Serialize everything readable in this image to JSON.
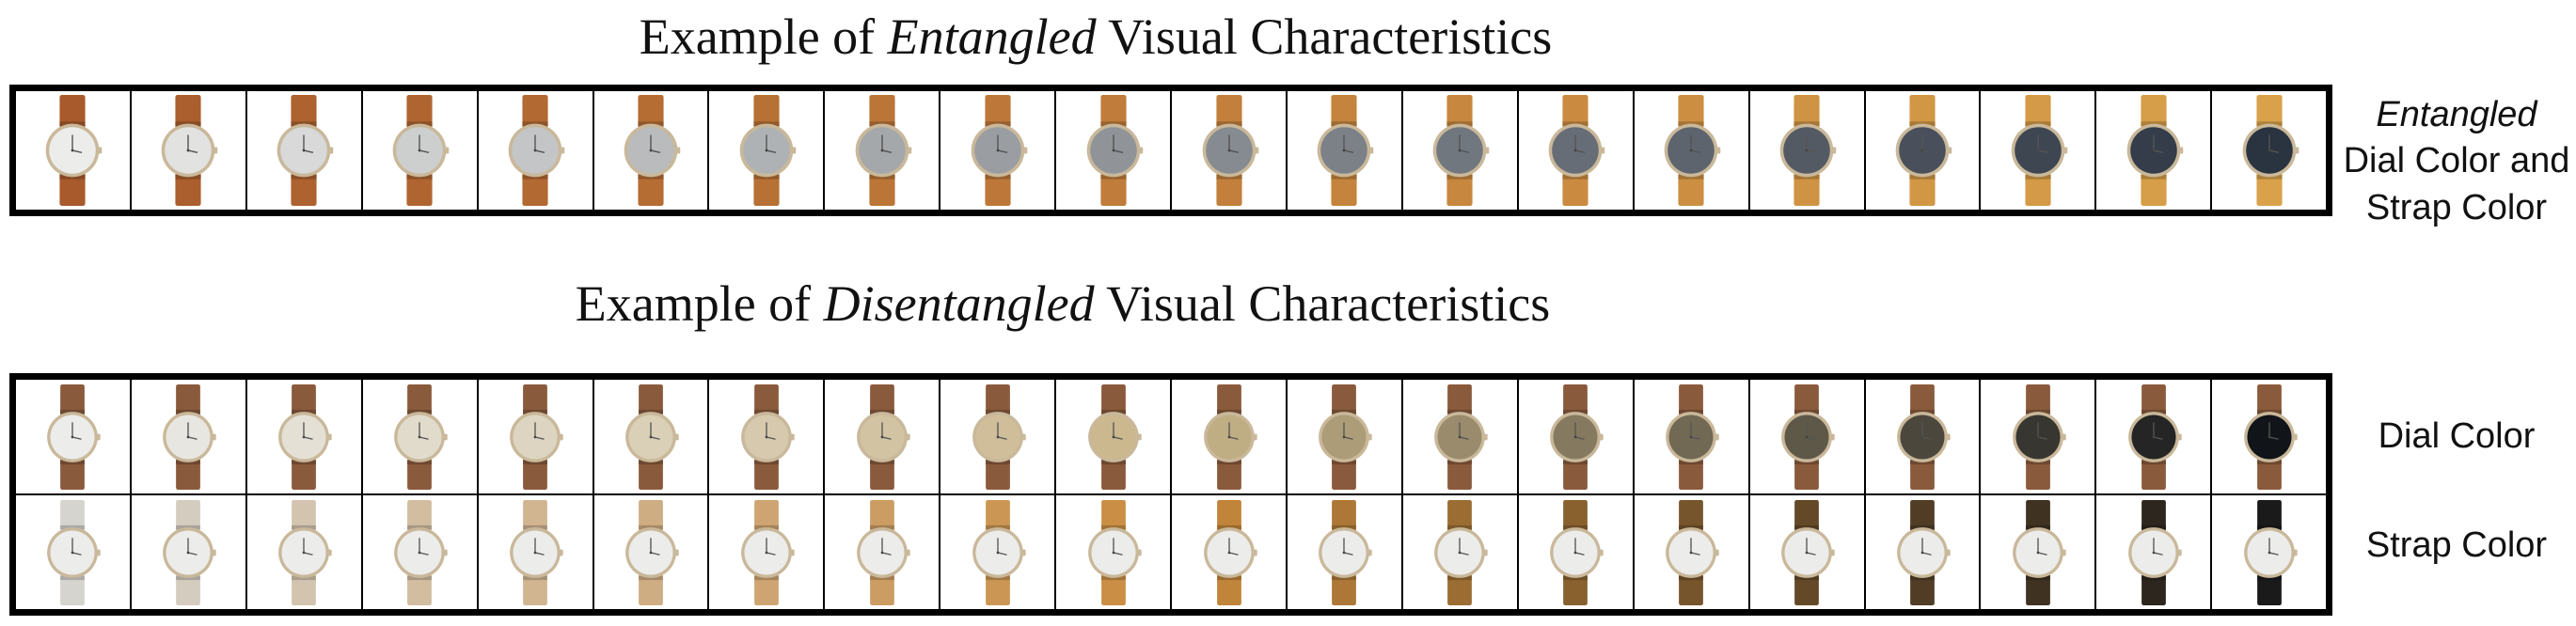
{
  "top": {
    "title_prefix": "Example of ",
    "title_emph": "Entangled",
    "title_suffix": " Visual Characteristics",
    "side_emph": "Entangled",
    "side_line2": "Dial Color and",
    "side_line3": "Strap Color"
  },
  "bottom": {
    "title_prefix": "Example of ",
    "title_emph": "Disentangled",
    "title_suffix": " Visual Characteristics",
    "row1_label": "Dial Color",
    "row2_label": "Strap Color"
  },
  "images": {
    "entangled_row": {
      "count": 20,
      "strap_start": "#a85a2c",
      "strap_end": "#d9a24a",
      "dial_start": "#ececea",
      "dial_end": "#2a3340"
    },
    "dial_row": {
      "count": 20,
      "strap": "#8a5a3c",
      "dial_start": "#ececea",
      "dial_mid": "#c9b58a",
      "dial_end": "#111418"
    },
    "strap_row": {
      "count": 20,
      "dial": "#ececea",
      "strap_start": "#d6d4cf",
      "strap_mid": "#c98a3c",
      "strap_end": "#1a1a1a"
    },
    "case_color": "#c9b89a"
  }
}
